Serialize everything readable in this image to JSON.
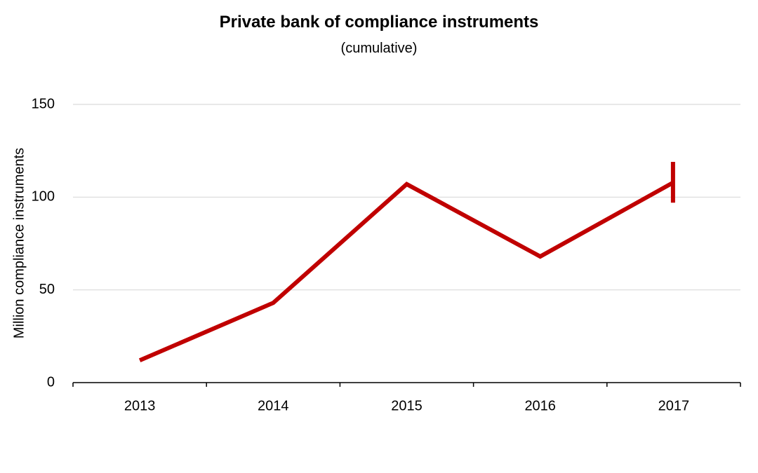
{
  "chart_data": {
    "type": "line",
    "title": "Private bank of compliance instruments",
    "subtitle": "(cumulative)",
    "xlabel": "",
    "ylabel": "Million compliance instruments",
    "categories": [
      "2013",
      "2014",
      "2015",
      "2016",
      "2017"
    ],
    "series": [
      {
        "values": [
          12,
          43,
          107,
          68,
          108
        ],
        "color": "#c00000"
      }
    ],
    "error_bars": [
      {
        "category": "2017",
        "low": 97,
        "high": 119
      }
    ],
    "ylim": [
      0,
      150
    ],
    "yticks": [
      0,
      50,
      100,
      150
    ],
    "grid": true,
    "legend": "none"
  }
}
